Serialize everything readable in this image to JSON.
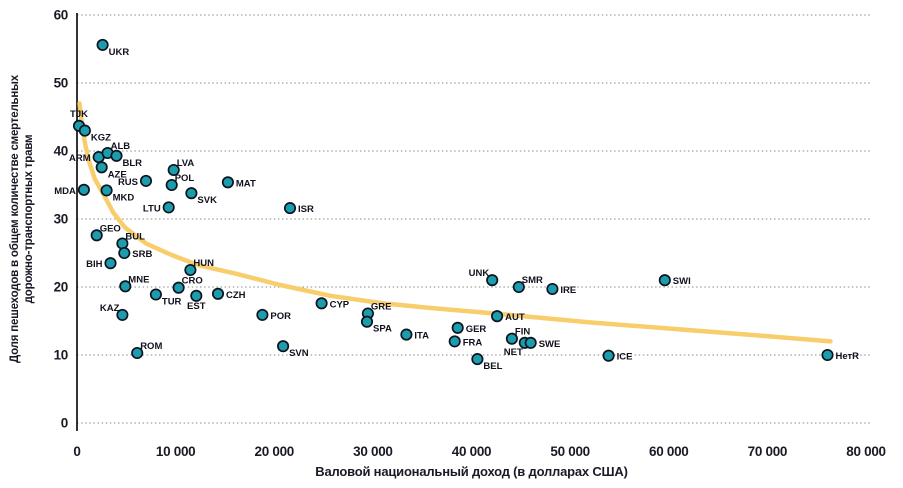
{
  "chart_data": {
    "type": "scatter",
    "title": "",
    "xlabel": "Валовой национальный доход (в долларах США)",
    "ylabel_line1": "Доля пешеходов в общем количестве смертельных",
    "ylabel_line2": "дорожно-транспортных травм",
    "xlim": [
      0,
      80000
    ],
    "ylim": [
      0,
      60
    ],
    "x_ticks": [
      {
        "value": 0,
        "label": "0"
      },
      {
        "value": 10000,
        "label": "10 000"
      },
      {
        "value": 20000,
        "label": "20 000"
      },
      {
        "value": 30000,
        "label": "30 000"
      },
      {
        "value": 40000,
        "label": "40 000"
      },
      {
        "value": 50000,
        "label": "50 000"
      },
      {
        "value": 60000,
        "label": "60 000"
      },
      {
        "value": 70000,
        "label": "70 000"
      },
      {
        "value": 80000,
        "label": "80 000"
      }
    ],
    "y_ticks": [
      0,
      10,
      20,
      30,
      40,
      50,
      60
    ],
    "grid": "horizontal-dotted",
    "legend": "none",
    "colors": {
      "marker_fill": "#1C9DAD",
      "marker_stroke": "#0C1420",
      "trend": "#F8CD6B",
      "gridline": "#8a8a8a",
      "axis": "#000000",
      "text": "#1a1a26"
    },
    "marker": {
      "shape": "circle",
      "radius": 5.2,
      "stroke_width": 1.7
    },
    "trend_line": {
      "width": 4.5,
      "points": [
        [
          250,
          47.0
        ],
        [
          500,
          44.0
        ],
        [
          800,
          41.2
        ],
        [
          1200,
          38.6
        ],
        [
          1800,
          35.9
        ],
        [
          2700,
          33.6
        ],
        [
          3700,
          30.9
        ],
        [
          4900,
          28.7
        ],
        [
          7000,
          26.4
        ],
        [
          9600,
          24.7
        ],
        [
          12300,
          23.2
        ],
        [
          16000,
          22.0
        ],
        [
          20600,
          20.3
        ],
        [
          25700,
          18.7
        ],
        [
          31000,
          17.6
        ],
        [
          36000,
          16.9
        ],
        [
          40900,
          16.3
        ],
        [
          46000,
          15.6
        ],
        [
          52000,
          14.8
        ],
        [
          60000,
          13.9
        ],
        [
          68000,
          13.0
        ],
        [
          76400,
          12.0
        ]
      ]
    },
    "points": [
      {
        "code": "TJK",
        "x": 200,
        "y": 43.7,
        "label_pos": "t"
      },
      {
        "code": "KGZ",
        "x": 800,
        "y": 43.0,
        "label_pos": "br"
      },
      {
        "code": "UKR",
        "x": 2600,
        "y": 55.6,
        "label_pos": "br"
      },
      {
        "code": "MDA",
        "x": 700,
        "y": 34.3,
        "label_pos": "l"
      },
      {
        "code": "ARM",
        "x": 2200,
        "y": 39.1,
        "label_pos": "l"
      },
      {
        "code": "GEO",
        "x": 2000,
        "y": 27.6,
        "label_pos": "tr"
      },
      {
        "code": "AZE",
        "x": 2500,
        "y": 37.6,
        "label_pos": "br"
      },
      {
        "code": "ALB",
        "x": 3100,
        "y": 39.7,
        "label_pos": "tr"
      },
      {
        "code": "BLR",
        "x": 4000,
        "y": 39.3,
        "label_pos": "br"
      },
      {
        "code": "MKD",
        "x": 3000,
        "y": 34.2,
        "label_pos": "br"
      },
      {
        "code": "BIH",
        "x": 3400,
        "y": 23.5,
        "label_pos": "l"
      },
      {
        "code": "BUL",
        "x": 4600,
        "y": 26.4,
        "label_pos": "tr"
      },
      {
        "code": "SRB",
        "x": 4800,
        "y": 25.0,
        "label_pos": "r"
      },
      {
        "code": "MNE",
        "x": 4900,
        "y": 20.1,
        "label_pos": "tr"
      },
      {
        "code": "KAZ",
        "x": 4600,
        "y": 15.9,
        "label_pos": "tl"
      },
      {
        "code": "ROM",
        "x": 6100,
        "y": 10.3,
        "label_pos": "tr"
      },
      {
        "code": "RUS",
        "x": 7000,
        "y": 35.6,
        "label_pos": "l"
      },
      {
        "code": "TUR",
        "x": 8000,
        "y": 18.9,
        "label_pos": "br"
      },
      {
        "code": "LTU",
        "x": 9300,
        "y": 31.7,
        "label_pos": "l"
      },
      {
        "code": "POL",
        "x": 9600,
        "y": 35.0,
        "label_pos": "tr"
      },
      {
        "code": "LVA",
        "x": 9800,
        "y": 37.2,
        "label_pos": "tr"
      },
      {
        "code": "CRO",
        "x": 10300,
        "y": 19.9,
        "label_pos": "tr"
      },
      {
        "code": "HUN",
        "x": 11500,
        "y": 22.5,
        "label_pos": "tr"
      },
      {
        "code": "SVK",
        "x": 11600,
        "y": 33.8,
        "label_pos": "br"
      },
      {
        "code": "EST",
        "x": 12100,
        "y": 18.7,
        "label_pos": "b"
      },
      {
        "code": "CZH",
        "x": 14300,
        "y": 19.0,
        "label_pos": "r"
      },
      {
        "code": "MAT",
        "x": 15300,
        "y": 35.4,
        "label_pos": "r"
      },
      {
        "code": "POR",
        "x": 18800,
        "y": 15.9,
        "label_pos": "r"
      },
      {
        "code": "SVN",
        "x": 20900,
        "y": 11.3,
        "label_pos": "br"
      },
      {
        "code": "ISR",
        "x": 21600,
        "y": 31.6,
        "label_pos": "r"
      },
      {
        "code": "CYP",
        "x": 24800,
        "y": 17.6,
        "label_pos": "r"
      },
      {
        "code": "GRE",
        "x": 29500,
        "y": 16.1,
        "label_pos": "tr"
      },
      {
        "code": "SPA",
        "x": 29400,
        "y": 14.9,
        "label_pos": "br"
      },
      {
        "code": "ITA",
        "x": 33400,
        "y": 13.0,
        "label_pos": "r"
      },
      {
        "code": "GER",
        "x": 38600,
        "y": 14.0,
        "label_pos": "r"
      },
      {
        "code": "FRA",
        "x": 38300,
        "y": 12.0,
        "label_pos": "r"
      },
      {
        "code": "BEL",
        "x": 40600,
        "y": 9.4,
        "label_pos": "br"
      },
      {
        "code": "UNK",
        "x": 42100,
        "y": 21.0,
        "label_pos": "tl"
      },
      {
        "code": "AUT",
        "x": 42600,
        "y": 15.7,
        "label_pos": "r"
      },
      {
        "code": "FIN",
        "x": 44100,
        "y": 12.4,
        "label_pos": "tr"
      },
      {
        "code": "SMR",
        "x": 44800,
        "y": 20.0,
        "label_pos": "tr"
      },
      {
        "code": "NET",
        "x": 45400,
        "y": 11.8,
        "label_pos": "bl"
      },
      {
        "code": "SWE",
        "x": 46000,
        "y": 11.8,
        "label_pos": "r"
      },
      {
        "code": "IRE",
        "x": 48200,
        "y": 19.7,
        "label_pos": "r"
      },
      {
        "code": "ICE",
        "x": 53900,
        "y": 9.9,
        "label_pos": "r"
      },
      {
        "code": "SWI",
        "x": 59600,
        "y": 21.0,
        "label_pos": "r"
      },
      {
        "code": "НетR",
        "x": 76100,
        "y": 10.0,
        "label_pos": "r"
      }
    ]
  }
}
